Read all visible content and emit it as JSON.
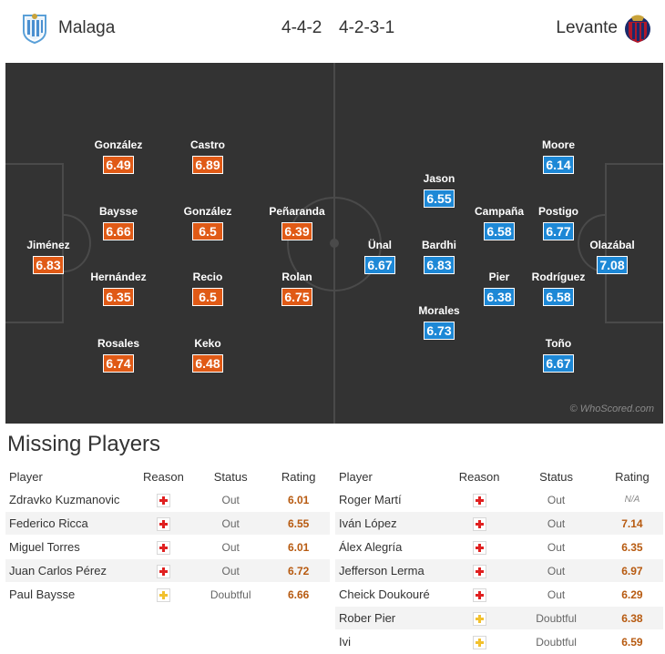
{
  "match": {
    "home": {
      "name": "Malaga",
      "formation": "4-4-2",
      "crest": "malaga-crest-icon"
    },
    "away": {
      "name": "Levante",
      "formation": "4-2-3-1",
      "crest": "levante-crest-icon"
    }
  },
  "pitch": {
    "watermark": "© WhoScored.com"
  },
  "lineups": {
    "home": [
      {
        "name": "Jiménez",
        "rating": "6.83"
      },
      {
        "name": "González",
        "rating": "6.49"
      },
      {
        "name": "Baysse",
        "rating": "6.66"
      },
      {
        "name": "Hernández",
        "rating": "6.35"
      },
      {
        "name": "Rosales",
        "rating": "6.74"
      },
      {
        "name": "Castro",
        "rating": "6.89"
      },
      {
        "name": "González",
        "rating": "6.5"
      },
      {
        "name": "Recio",
        "rating": "6.5"
      },
      {
        "name": "Keko",
        "rating": "6.48"
      },
      {
        "name": "Peñaranda",
        "rating": "6.39"
      },
      {
        "name": "Rolan",
        "rating": "6.75"
      }
    ],
    "away": [
      {
        "name": "Olazábal",
        "rating": "7.08"
      },
      {
        "name": "Moore",
        "rating": "6.14"
      },
      {
        "name": "Postigo",
        "rating": "6.77"
      },
      {
        "name": "Rodríguez",
        "rating": "6.58"
      },
      {
        "name": "Toño",
        "rating": "6.67"
      },
      {
        "name": "Campaña",
        "rating": "6.58"
      },
      {
        "name": "Pier",
        "rating": "6.38"
      },
      {
        "name": "Jason",
        "rating": "6.55"
      },
      {
        "name": "Bardhi",
        "rating": "6.83"
      },
      {
        "name": "Morales",
        "rating": "6.73"
      },
      {
        "name": "Ünal",
        "rating": "6.67"
      }
    ]
  },
  "missing": {
    "title": "Missing Players",
    "columns": {
      "player": "Player",
      "reason": "Reason",
      "status": "Status",
      "rating": "Rating"
    },
    "home": [
      {
        "player": "Zdravko Kuzmanovic",
        "reason": "injury",
        "status": "Out",
        "rating": "6.01"
      },
      {
        "player": "Federico Ricca",
        "reason": "injury",
        "status": "Out",
        "rating": "6.55"
      },
      {
        "player": "Miguel Torres",
        "reason": "injury",
        "status": "Out",
        "rating": "6.01"
      },
      {
        "player": "Juan Carlos Pérez",
        "reason": "injury",
        "status": "Out",
        "rating": "6.72"
      },
      {
        "player": "Paul Baysse",
        "reason": "doubtful",
        "status": "Doubtful",
        "rating": "6.66"
      }
    ],
    "away": [
      {
        "player": "Roger Martí",
        "reason": "injury",
        "status": "Out",
        "rating": "N/A"
      },
      {
        "player": "Iván López",
        "reason": "injury",
        "status": "Out",
        "rating": "7.14"
      },
      {
        "player": "Álex Alegría",
        "reason": "injury",
        "status": "Out",
        "rating": "6.35"
      },
      {
        "player": "Jefferson Lerma",
        "reason": "injury",
        "status": "Out",
        "rating": "6.97"
      },
      {
        "player": "Cheick Doukouré",
        "reason": "injury",
        "status": "Out",
        "rating": "6.29"
      },
      {
        "player": "Rober Pier",
        "reason": "doubtful",
        "status": "Doubtful",
        "rating": "6.38"
      },
      {
        "player": "Ivi",
        "reason": "doubtful",
        "status": "Doubtful",
        "rating": "6.59"
      }
    ]
  },
  "colors": {
    "home_rating": "#e05a16",
    "away_rating": "#1d88d6",
    "pitch": "#333333",
    "injury": "#e02020",
    "doubtful": "#f2c12e"
  }
}
